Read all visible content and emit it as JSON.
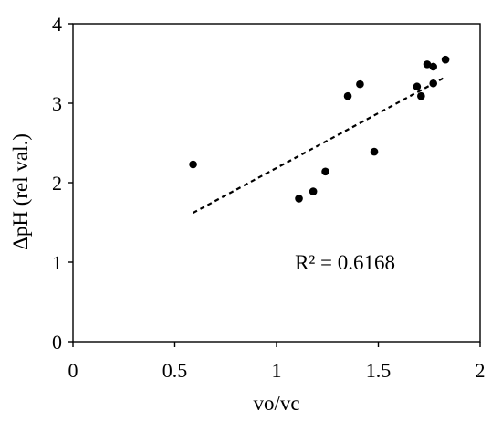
{
  "chart_data": {
    "type": "scatter",
    "title": "",
    "xlabel": "vo/vc",
    "ylabel": "ΔpH (rel val.)",
    "xlim": [
      0,
      2
    ],
    "ylim": [
      0,
      4
    ],
    "x_ticks": [
      0,
      0.5,
      1,
      1.5,
      2
    ],
    "x_tick_labels": [
      "0",
      "0.5",
      "1",
      "1.5",
      "2"
    ],
    "y_ticks": [
      0,
      1,
      2,
      3,
      4
    ],
    "y_tick_labels": [
      "0",
      "1",
      "2",
      "3",
      "4"
    ],
    "grid": false,
    "legend": "none",
    "series": [
      {
        "points": [
          [
            0.59,
            2.23
          ],
          [
            1.11,
            1.8
          ],
          [
            1.18,
            1.89
          ],
          [
            1.24,
            2.14
          ],
          [
            1.35,
            3.09
          ],
          [
            1.41,
            3.24
          ],
          [
            1.48,
            2.39
          ],
          [
            1.69,
            3.21
          ],
          [
            1.71,
            3.09
          ],
          [
            1.74,
            3.49
          ],
          [
            1.77,
            3.46
          ],
          [
            1.77,
            3.25
          ],
          [
            1.83,
            3.55
          ]
        ],
        "marker_color": "#000000"
      }
    ],
    "trendline": {
      "type": "linear",
      "style": "dashed",
      "x_range": [
        0.59,
        1.83
      ],
      "y_range": [
        1.62,
        3.33
      ]
    },
    "annotations": [
      {
        "text": "R² = 0.6168",
        "x": 1.09,
        "y": 1.0
      }
    ]
  }
}
